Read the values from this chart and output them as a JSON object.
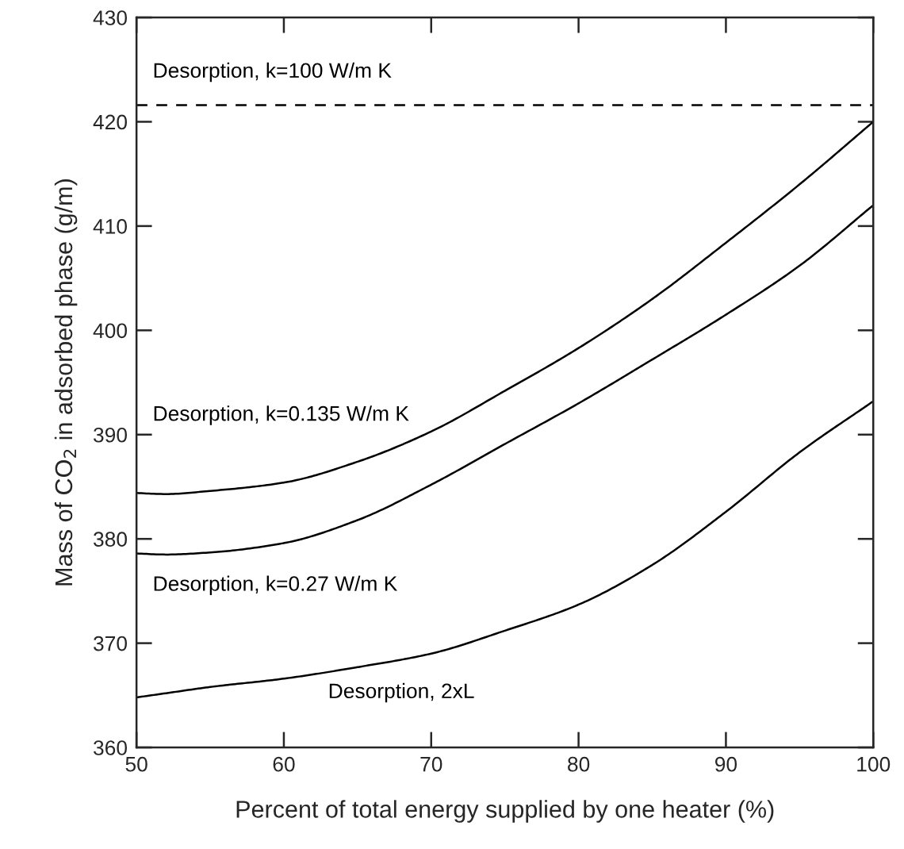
{
  "chart_data": {
    "type": "line",
    "xlabel": "Percent of total energy supplied by one heater (%)",
    "ylabel": "Mass of CO$_{2}$ in adsorbed phase (g/m)",
    "x": [
      50,
      52,
      55,
      60,
      65,
      70,
      75,
      80,
      85,
      90,
      95,
      100
    ],
    "series": [
      {
        "name": "Desorption, k=0.135 W/m K",
        "color": "#000000",
        "values": [
          384.4,
          384.3,
          384.6,
          385.4,
          387.4,
          390.3,
          394.2,
          398.3,
          403.0,
          408.4,
          414.0,
          420.0
        ]
      },
      {
        "name": "Desorption, k=0.27 W/m K",
        "color": "#000000",
        "values": [
          378.6,
          378.5,
          378.7,
          379.6,
          381.8,
          385.2,
          389.1,
          393.0,
          397.2,
          401.5,
          406.2,
          412.0
        ]
      },
      {
        "name": "Desorption, 2xL",
        "color": "#000000",
        "values": [
          364.8,
          365.2,
          365.8,
          366.6,
          367.7,
          369.0,
          371.2,
          373.7,
          377.5,
          382.6,
          388.3,
          393.2
        ]
      },
      {
        "name": "Desorption, k=100 W/m K",
        "color": "#000000",
        "line_style": "dashed",
        "x": [
          50,
          100
        ],
        "values": [
          421.6,
          421.6
        ]
      }
    ],
    "xlim": [
      50,
      100
    ],
    "xticks": [
      50,
      60,
      70,
      80,
      90,
      100
    ],
    "ylim": [
      360,
      430
    ],
    "yticks": [
      360,
      370,
      380,
      390,
      400,
      410,
      420,
      430
    ],
    "grid": false,
    "legend": false,
    "marker": "none",
    "line_style": "solid"
  }
}
